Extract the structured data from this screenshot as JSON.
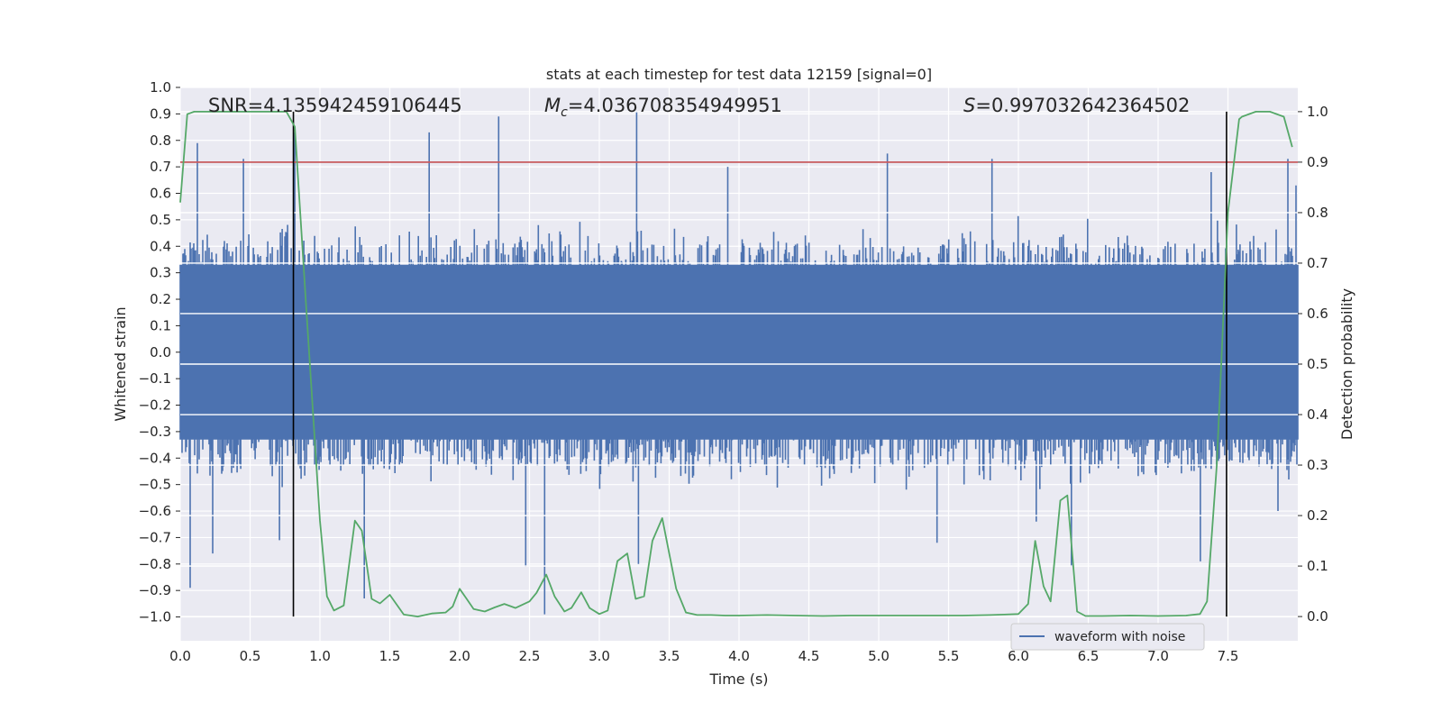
{
  "chart_data": {
    "type": "line",
    "title": "stats at each timestep for test data 12159 [signal=0]",
    "xlabel": "Time (s)",
    "ylabel": "Whitened strain",
    "y2label": "Detection probability",
    "xlim": [
      0.0,
      8.0
    ],
    "ylim": [
      -1.09,
      1.0
    ],
    "y2lim": [
      -0.048,
      1.048
    ],
    "xticks": [
      "0.0",
      "0.5",
      "1.0",
      "1.5",
      "2.0",
      "2.5",
      "3.0",
      "3.5",
      "4.0",
      "4.5",
      "5.0",
      "5.5",
      "6.0",
      "6.5",
      "7.0",
      "7.5"
    ],
    "yticks": [
      "1.0",
      "0.9",
      "0.8",
      "0.7",
      "0.6",
      "0.5",
      "0.4",
      "0.3",
      "0.2",
      "0.1",
      "0.0",
      "−0.1",
      "−0.2",
      "−0.3",
      "−0.4",
      "−0.5",
      "−0.6",
      "−0.7",
      "−0.8",
      "−0.9",
      "−1.0"
    ],
    "y2ticks": [
      "1.0",
      "0.9",
      "0.8",
      "0.7",
      "0.6",
      "0.5",
      "0.4",
      "0.3",
      "0.2",
      "0.1",
      "0.0"
    ],
    "grid": true,
    "annotations": {
      "snr": "SNR=4.135942459106445",
      "mc_symbol": "M",
      "mc_sub": "c",
      "mc_value": "=4.036708354949951",
      "s_symbol": "S",
      "s_value": "=0.997032642364502"
    },
    "threshold_y2": 0.9,
    "vlines_x": [
      0.81,
      7.49
    ],
    "waveform": {
      "name": "waveform with noise",
      "color": "#4c72b0",
      "duration": 8.0,
      "core_amplitude": 0.33,
      "band_amplitude": 0.5,
      "peaks": [
        {
          "t": 0.07,
          "v": -0.89
        },
        {
          "t": 0.12,
          "v": 0.79
        },
        {
          "t": 0.23,
          "v": -0.76
        },
        {
          "t": 0.45,
          "v": 0.73
        },
        {
          "t": 0.71,
          "v": -0.71
        },
        {
          "t": 0.82,
          "v": 0.83
        },
        {
          "t": 1.32,
          "v": -0.93
        },
        {
          "t": 1.78,
          "v": 0.83
        },
        {
          "t": 2.28,
          "v": 0.89
        },
        {
          "t": 2.47,
          "v": -0.81
        },
        {
          "t": 2.61,
          "v": -0.99
        },
        {
          "t": 3.27,
          "v": 0.91
        },
        {
          "t": 3.28,
          "v": -0.8
        },
        {
          "t": 3.92,
          "v": 0.7
        },
        {
          "t": 5.06,
          "v": 0.75
        },
        {
          "t": 5.42,
          "v": -0.72
        },
        {
          "t": 5.81,
          "v": 0.73
        },
        {
          "t": 6.13,
          "v": -0.64
        },
        {
          "t": 6.38,
          "v": -0.81
        },
        {
          "t": 7.3,
          "v": -0.79
        },
        {
          "t": 7.38,
          "v": 0.68
        },
        {
          "t": 7.93,
          "v": 0.73
        },
        {
          "t": 7.86,
          "v": -0.6
        },
        {
          "t": 7.99,
          "v": 0.63
        }
      ]
    },
    "detection_probability": {
      "name": "detection probability",
      "color": "#55a868",
      "x": [
        0.0,
        0.05,
        0.1,
        0.15,
        0.2,
        0.3,
        0.4,
        0.5,
        0.6,
        0.7,
        0.76,
        0.82,
        0.9,
        1.0,
        1.05,
        1.1,
        1.17,
        1.25,
        1.3,
        1.37,
        1.43,
        1.5,
        1.6,
        1.7,
        1.8,
        1.9,
        1.95,
        2.0,
        2.05,
        2.1,
        2.18,
        2.25,
        2.32,
        2.4,
        2.5,
        2.55,
        2.62,
        2.68,
        2.75,
        2.8,
        2.87,
        2.93,
        3.0,
        3.06,
        3.13,
        3.2,
        3.26,
        3.32,
        3.38,
        3.45,
        3.55,
        3.62,
        3.7,
        3.8,
        3.9,
        4.0,
        4.2,
        4.4,
        4.6,
        4.8,
        5.0,
        5.2,
        5.4,
        5.6,
        5.8,
        5.9,
        6.0,
        6.07,
        6.12,
        6.18,
        6.23,
        6.3,
        6.35,
        6.42,
        6.48,
        6.6,
        6.8,
        7.0,
        7.2,
        7.3,
        7.35,
        7.42,
        7.5,
        7.58,
        7.6,
        7.7,
        7.8,
        7.9,
        7.96
      ],
      "y": [
        0.82,
        0.995,
        1.0,
        1.0,
        1.0,
        1.0,
        1.0,
        1.0,
        1.0,
        1.0,
        1.0,
        0.97,
        0.62,
        0.19,
        0.04,
        0.012,
        0.022,
        0.19,
        0.17,
        0.035,
        0.026,
        0.043,
        0.004,
        0.0,
        0.006,
        0.008,
        0.02,
        0.055,
        0.035,
        0.015,
        0.01,
        0.018,
        0.025,
        0.017,
        0.03,
        0.047,
        0.083,
        0.04,
        0.01,
        0.017,
        0.048,
        0.017,
        0.005,
        0.012,
        0.11,
        0.125,
        0.035,
        0.04,
        0.15,
        0.195,
        0.055,
        0.008,
        0.003,
        0.003,
        0.002,
        0.002,
        0.003,
        0.002,
        0.001,
        0.002,
        0.002,
        0.002,
        0.002,
        0.002,
        0.003,
        0.004,
        0.005,
        0.025,
        0.15,
        0.06,
        0.03,
        0.23,
        0.24,
        0.01,
        0.001,
        0.001,
        0.002,
        0.001,
        0.002,
        0.005,
        0.03,
        0.3,
        0.8,
        0.985,
        0.99,
        1.0,
        1.0,
        0.99,
        0.93
      ]
    },
    "legend": {
      "placement": "lower-right",
      "entries": [
        {
          "label": "waveform with noise",
          "color": "#4c72b0"
        }
      ]
    },
    "colors": {
      "plot_background": "#eaeaf2",
      "grid": "#ffffff",
      "threshold": "#c44e52",
      "vline": "#000000",
      "text": "#262626"
    }
  }
}
